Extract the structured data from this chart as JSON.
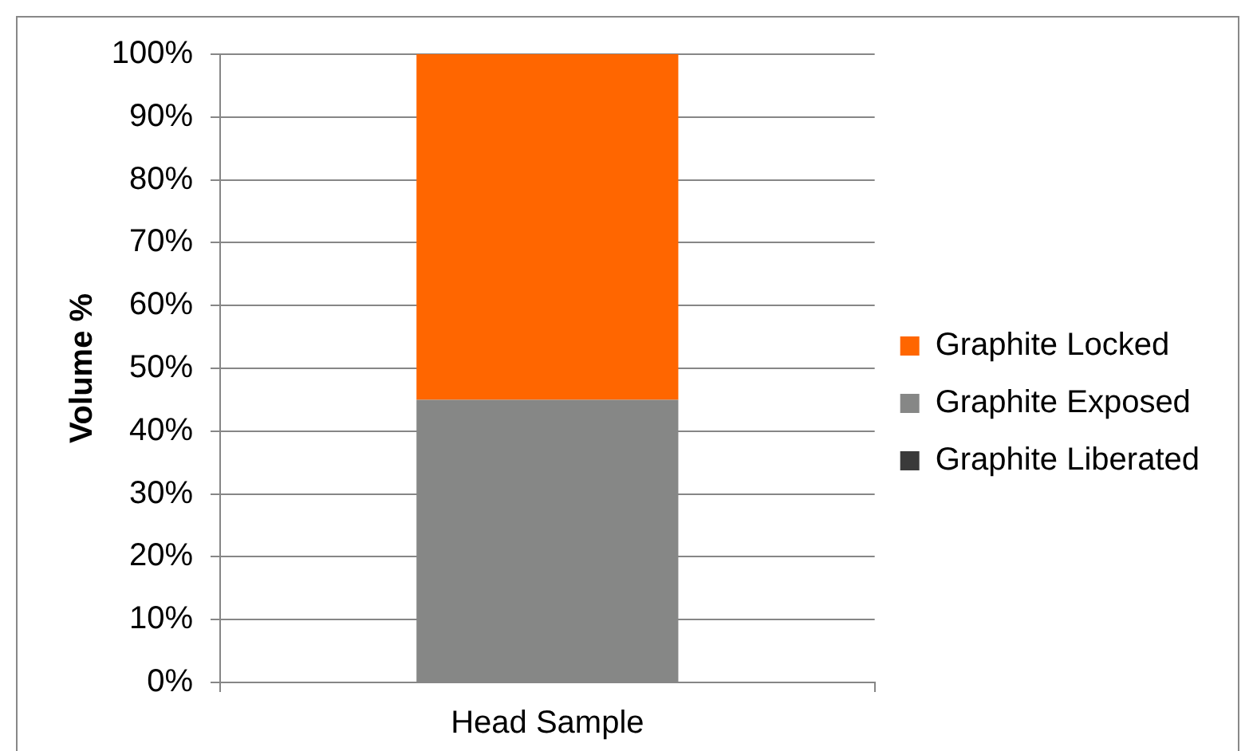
{
  "chart_data": {
    "type": "bar",
    "stacked": true,
    "categories": [
      "Head Sample"
    ],
    "series": [
      {
        "name": "Graphite Liberated",
        "color": "#3a3a3a",
        "values": [
          0
        ]
      },
      {
        "name": "Graphite Exposed",
        "color": "#868786",
        "values": [
          45
        ]
      },
      {
        "name": "Graphite Locked",
        "color": "#ff6600",
        "values": [
          55
        ]
      }
    ],
    "ylabel": "Volume %",
    "ylim": [
      0,
      100
    ],
    "yticks": [
      {
        "value": 0,
        "label": "0%"
      },
      {
        "value": 10,
        "label": "10%"
      },
      {
        "value": 20,
        "label": "20%"
      },
      {
        "value": 30,
        "label": "30%"
      },
      {
        "value": 40,
        "label": "40%"
      },
      {
        "value": 50,
        "label": "50%"
      },
      {
        "value": 60,
        "label": "60%"
      },
      {
        "value": 70,
        "label": "70%"
      },
      {
        "value": 80,
        "label": "80%"
      },
      {
        "value": 90,
        "label": "90%"
      },
      {
        "value": 100,
        "label": "100%"
      }
    ],
    "grid": "y",
    "legend": "right"
  }
}
